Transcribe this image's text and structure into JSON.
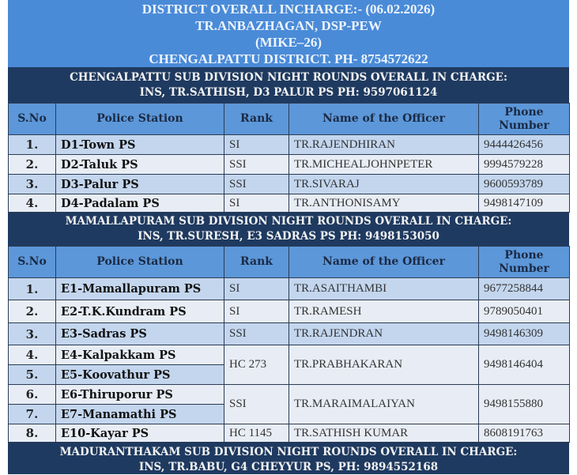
{
  "header": {
    "line1": "DISTRICT OVERALL INCHARGE:- (06.02.2026)",
    "line2": "TR.ANBAZHAGAN, DSP-PEW",
    "line3": "(MIKE–26)",
    "line4": "CHENGALPATTU DISTRICT. PH- 8754572622"
  },
  "columns": [
    "S.No",
    "Police Station",
    "Rank",
    "Name of the Officer",
    "Phone Number"
  ],
  "colors": {
    "header_bg": "#4a8bd8",
    "banner_bg": "#1f3a60",
    "column_header_bg": "#5c97d9",
    "row_blue": "#c3d6ee",
    "row_light": "#e8edf5"
  },
  "sections": [
    {
      "title1": "CHENGALPATTU SUB DIVISION NIGHT ROUNDS OVERALL IN CHARGE:",
      "title2": "INS, TR.SATHISH, D3 PALUR PS PH: 9597061124",
      "rows": [
        {
          "sno": "1.",
          "ps": "D1-Town PS",
          "rank": "SI",
          "name": "TR.RAJENDHIRAN",
          "phone": "9444426456"
        },
        {
          "sno": "2.",
          "ps": "D2-Taluk PS",
          "rank": "SSI",
          "name": "TR.MICHEALJOHNPETER",
          "phone": "9994579228"
        },
        {
          "sno": "3.",
          "ps": "D3-Palur PS",
          "rank": "SSI",
          "name": "TR.SIVARAJ",
          "phone": "9600593789"
        },
        {
          "sno": "4.",
          "ps": "D4-Padalam PS",
          "rank": "SI",
          "name": "TR.ANTHONISAMY",
          "phone": "9498147109"
        }
      ]
    },
    {
      "title1": "MAMALLAPURAM SUB DIVISION NIGHT ROUNDS OVERALL IN CHARGE:",
      "title2": "INS, TR.SURESH, E3 SADRAS PS PH: 9498153050",
      "rows": [
        {
          "sno": "1.",
          "ps": "E1-Mamallapuram PS",
          "rank": "SI",
          "name": "TR.ASAITHAMBI",
          "phone": "9677258844"
        },
        {
          "sno": "2.",
          "ps": "E2-T.K.Kundram PS",
          "rank": "SI",
          "name": "TR.RAMESH",
          "phone": "9789050401"
        },
        {
          "sno": "3.",
          "ps": "E3-Sadras PS",
          "rank": "SSI",
          "name": "TR.RAJENDRAN",
          "phone": "9498146309"
        },
        {
          "sno": "4.",
          "ps": "E4-Kalpakkam PS",
          "rank": "HC 273",
          "name": "TR.PRABHAKARAN",
          "phone": "9498146404"
        },
        {
          "sno": "5.",
          "ps": "E5-Koovathur PS"
        },
        {
          "sno": "6.",
          "ps": "E6-Thiruporur PS",
          "rank": "SSI",
          "name": "TR.MARAIMALAIYAN",
          "phone": "9498155880"
        },
        {
          "sno": "7.",
          "ps": "E7-Manamathi PS"
        },
        {
          "sno": "8.",
          "ps": "E10-Kayar PS",
          "rank": "HC 1145",
          "name": "TR.SATHISH KUMAR",
          "phone": "8608191763"
        }
      ]
    },
    {
      "title1": "MADURANTHAKAM SUB DIVISION NIGHT ROUNDS OVERALL IN CHARGE:",
      "title2": "INS, TR.BABU, G4 CHEYYUR PS, PH: 9894552168"
    }
  ]
}
